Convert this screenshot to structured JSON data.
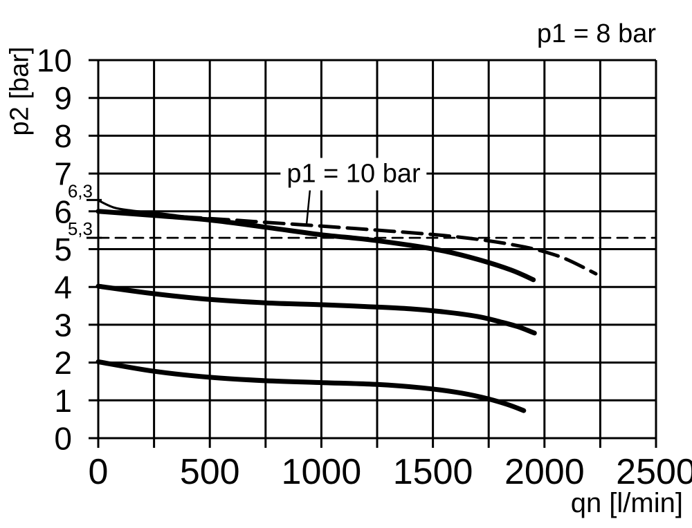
{
  "colors": {
    "foreground": "#000000",
    "background": "#ffffff"
  },
  "chart_data": {
    "type": "line",
    "title": "",
    "xlabel": "qn [l/min]",
    "ylabel": "p2 [bar]",
    "xlim": [
      0,
      2500
    ],
    "ylim": [
      0,
      10
    ],
    "x_ticks": [
      0,
      500,
      1000,
      1500,
      2000,
      2500
    ],
    "x_tick_labels": [
      "0",
      "500",
      "1000",
      "1500",
      "2000",
      "2500"
    ],
    "y_ticks": [
      0,
      1,
      2,
      3,
      4,
      5,
      6,
      7,
      8,
      9,
      10
    ],
    "y_tick_labels": [
      "0",
      "1",
      "2",
      "3",
      "4",
      "5",
      "6",
      "7",
      "8",
      "9",
      "10"
    ],
    "x_grid_step": 250,
    "y_grid_step": 1,
    "grid": true,
    "legend": false,
    "special_y_ticks": [
      {
        "value": 6.3,
        "label": "6,3"
      },
      {
        "value": 5.3,
        "label": "5,3"
      }
    ],
    "annotations": {
      "p1_8": {
        "text": "p1 = 8 bar",
        "position": "top-right"
      },
      "p1_10": {
        "text": "p1 = 10 bar",
        "points_to_series": "p1_10bar_dashed",
        "pointer_target_q": 930
      }
    },
    "series": [
      {
        "name": "set_6.3_lockup",
        "description": "thin solid curve starting at 6.3 bar, merges into main 6 bar curve",
        "line_style": "thin",
        "points": [
          [
            0,
            6.29
          ],
          [
            70,
            6.1
          ],
          [
            150,
            6.02
          ],
          [
            270,
            5.95
          ],
          [
            400,
            5.86
          ],
          [
            560,
            5.78
          ]
        ]
      },
      {
        "name": "p1_8bar_set6",
        "description": "thick solid regulation curve, set pressure 6 bar at p1 = 8 bar",
        "line_style": "thick",
        "points": [
          [
            0,
            6.0
          ],
          [
            250,
            5.89
          ],
          [
            500,
            5.77
          ],
          [
            750,
            5.58
          ],
          [
            1000,
            5.38
          ],
          [
            1200,
            5.26
          ],
          [
            1400,
            5.1
          ],
          [
            1550,
            4.95
          ],
          [
            1700,
            4.73
          ],
          [
            1850,
            4.45
          ],
          [
            1950,
            4.19
          ]
        ]
      },
      {
        "name": "p1_10bar_dashed",
        "description": "long-dashed comparison curve at p1 = 10 bar",
        "line_style": "long-dash",
        "points": [
          [
            250,
            5.9
          ],
          [
            500,
            5.81
          ],
          [
            700,
            5.73
          ],
          [
            1000,
            5.61
          ],
          [
            1300,
            5.48
          ],
          [
            1550,
            5.36
          ],
          [
            1750,
            5.22
          ],
          [
            1900,
            5.07
          ],
          [
            2000,
            4.93
          ],
          [
            2100,
            4.73
          ],
          [
            2230,
            4.35
          ]
        ]
      },
      {
        "name": "p1_8bar_set4",
        "description": "thick solid regulation curve, set pressure 4 bar at p1 = 8 bar",
        "line_style": "thick",
        "points": [
          [
            0,
            4.02
          ],
          [
            250,
            3.82
          ],
          [
            500,
            3.67
          ],
          [
            750,
            3.58
          ],
          [
            1000,
            3.53
          ],
          [
            1200,
            3.48
          ],
          [
            1400,
            3.42
          ],
          [
            1550,
            3.34
          ],
          [
            1700,
            3.22
          ],
          [
            1800,
            3.08
          ],
          [
            1880,
            2.95
          ],
          [
            1955,
            2.78
          ]
        ]
      },
      {
        "name": "p1_8bar_set2",
        "description": "thick solid regulation curve, set pressure 2 bar at p1 = 8 bar",
        "line_style": "thick",
        "points": [
          [
            0,
            2.02
          ],
          [
            250,
            1.77
          ],
          [
            500,
            1.61
          ],
          [
            750,
            1.52
          ],
          [
            1000,
            1.47
          ],
          [
            1250,
            1.42
          ],
          [
            1450,
            1.33
          ],
          [
            1600,
            1.22
          ],
          [
            1720,
            1.08
          ],
          [
            1830,
            0.9
          ],
          [
            1907,
            0.73
          ]
        ]
      },
      {
        "name": "reference_5_3bar",
        "description": "fine dashed horizontal reference line at 5.3 bar",
        "line_style": "fine-dash",
        "points": [
          [
            0,
            5.3
          ],
          [
            2500,
            5.3
          ]
        ]
      }
    ]
  }
}
